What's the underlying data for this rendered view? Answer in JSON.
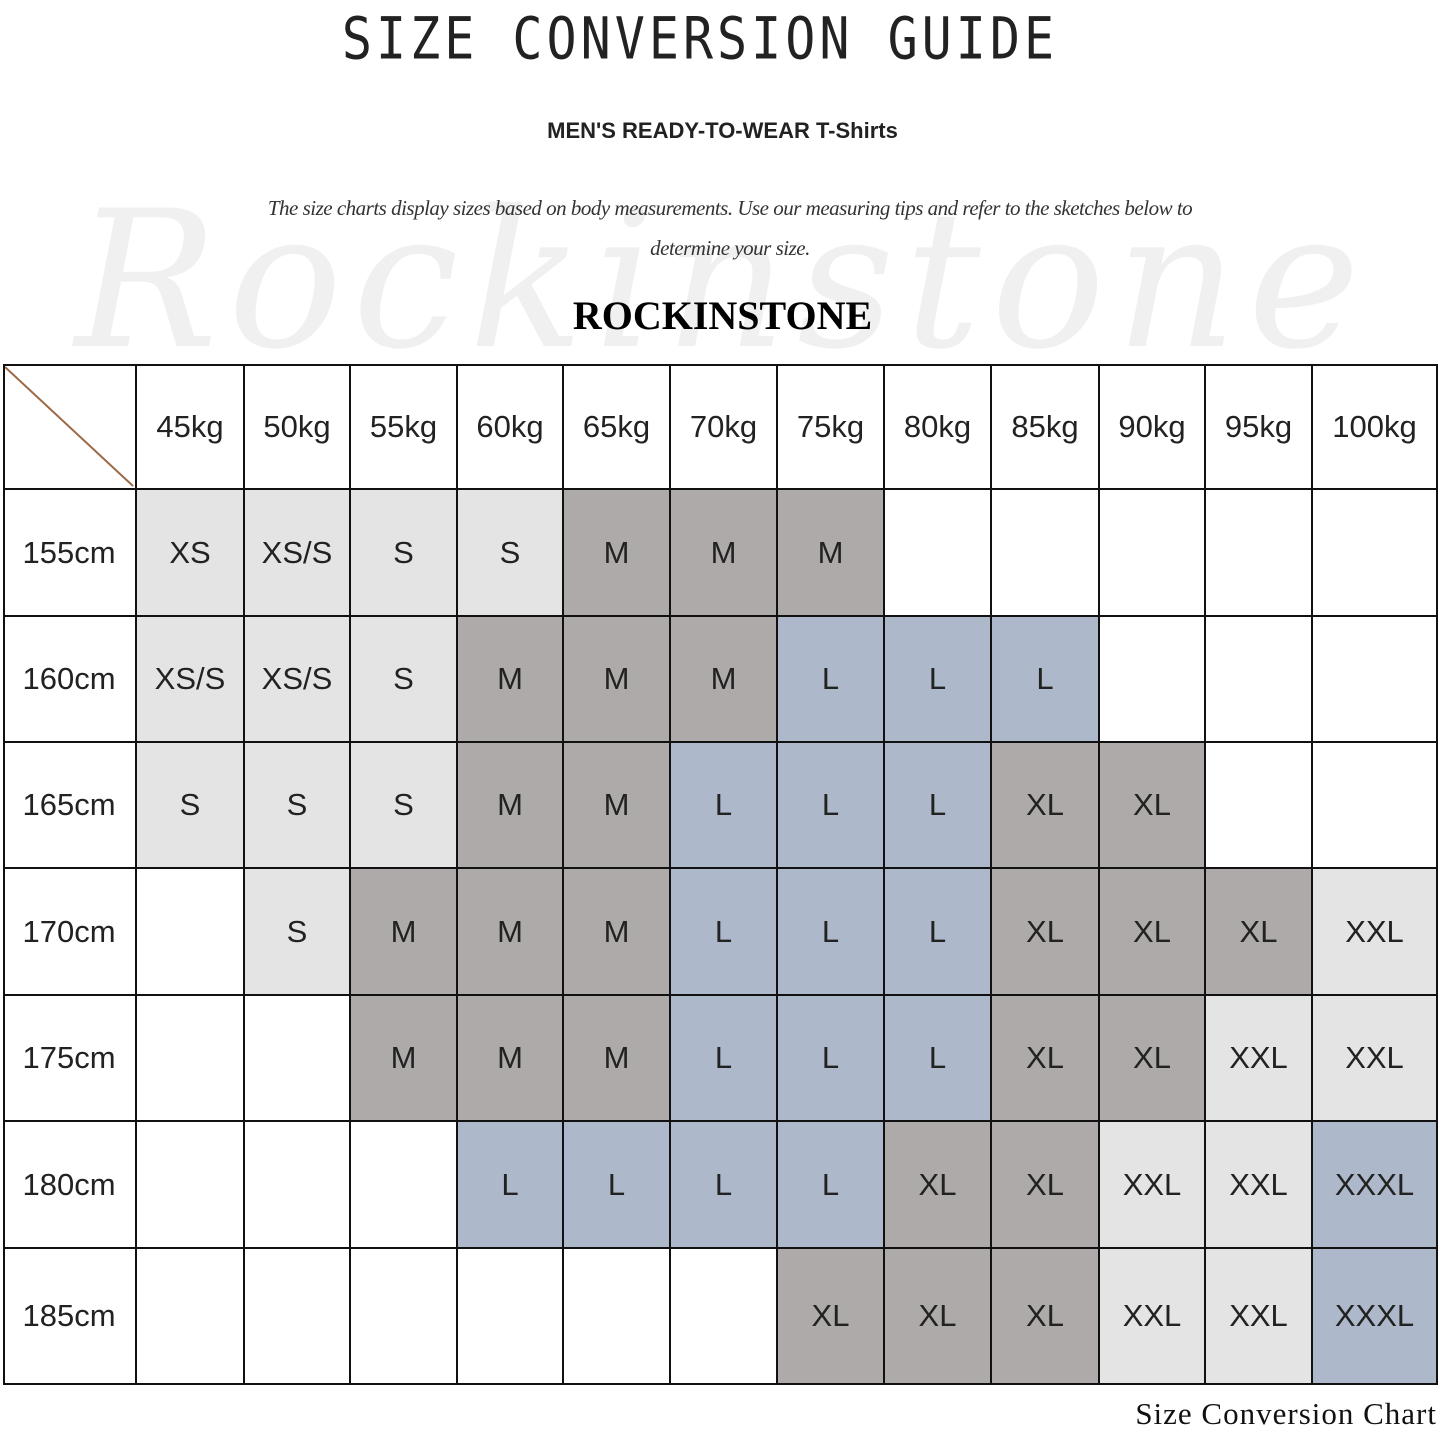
{
  "header": {
    "title": "SIZE CONVERSION GUIDE",
    "subtitle": "MEN'S READY-TO-WEAR T-Shirts",
    "description": "The size charts display sizes based on body measurements. Use our measuring tips and refer to the sketches below to determine your size.",
    "brand": "ROCKINSTONE",
    "watermark": "Rockinstone"
  },
  "table": {
    "weights": [
      "45kg",
      "50kg",
      "55kg",
      "60kg",
      "65kg",
      "70kg",
      "75kg",
      "80kg",
      "85kg",
      "90kg",
      "95kg",
      "100kg"
    ],
    "rows": [
      {
        "height": "155cm",
        "sizes": [
          "XS",
          "XS/S",
          "S",
          "S",
          "M",
          "M",
          "M",
          "",
          "",
          "",
          "",
          ""
        ]
      },
      {
        "height": "160cm",
        "sizes": [
          "XS/S",
          "XS/S",
          "S",
          "M",
          "M",
          "M",
          "L",
          "L",
          "L",
          "",
          "",
          ""
        ]
      },
      {
        "height": "165cm",
        "sizes": [
          "S",
          "S",
          "S",
          "M",
          "M",
          "L",
          "L",
          "L",
          "XL",
          "XL",
          "",
          ""
        ]
      },
      {
        "height": "170cm",
        "sizes": [
          "",
          "S",
          "M",
          "M",
          "M",
          "L",
          "L",
          "L",
          "XL",
          "XL",
          "XL",
          "XXL"
        ]
      },
      {
        "height": "175cm",
        "sizes": [
          "",
          "",
          "M",
          "M",
          "M",
          "L",
          "L",
          "L",
          "XL",
          "XL",
          "XXL",
          "XXL"
        ]
      },
      {
        "height": "180cm",
        "sizes": [
          "",
          "",
          "",
          "L",
          "L",
          "L",
          "L",
          "XL",
          "XL",
          "XXL",
          "XXL",
          "XXXL"
        ]
      },
      {
        "height": "185cm",
        "sizes": [
          "",
          "",
          "",
          "",
          "",
          "",
          "XL",
          "XL",
          "XL",
          "XXL",
          "XXL",
          "XXXL"
        ]
      }
    ],
    "size_colors": {
      "XS": "#e4e4e4",
      "XS/S": "#e4e4e4",
      "S": "#e4e4e4",
      "M": "#aeaaa9",
      "L": "#adb9ca",
      "XL": "#aeaaa9",
      "XXL": "#e4e4e4",
      "XXXL": "#adb9ca"
    },
    "diagonal_color": "#9c6a45"
  },
  "footer": {
    "caption": "Size Conversion Chart"
  }
}
